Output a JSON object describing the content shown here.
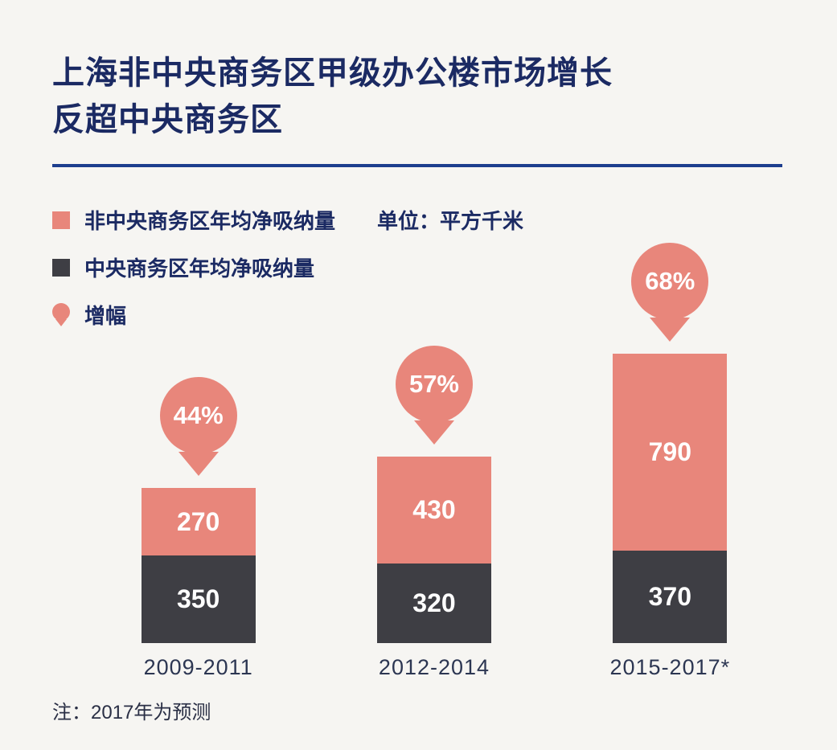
{
  "title": {
    "line1": "上海非中央商务区甲级办公楼市场增长",
    "line2": "反超中央商务区"
  },
  "legend": {
    "items": [
      {
        "label": "非中央商务区年均净吸纳量",
        "swatch": "square",
        "color": "#e8867b"
      },
      {
        "label": "中央商务区年均净吸纳量",
        "swatch": "square",
        "color": "#3e3e44"
      },
      {
        "label": "增幅",
        "swatch": "pin",
        "color": "#e8867b"
      }
    ],
    "unit": "单位：平方千米"
  },
  "chart_data": {
    "type": "bar",
    "stacked": true,
    "title": "上海非中央商务区甲级办公楼市场增长反超中央商务区",
    "unit": "平方千米",
    "categories": [
      "2009-2011",
      "2012-2014",
      "2015-2017*"
    ],
    "series": [
      {
        "name": "中央商务区年均净吸纳量",
        "color": "#3e3e44",
        "values": [
          350,
          320,
          370
        ]
      },
      {
        "name": "非中央商务区年均净吸纳量",
        "color": "#e8867b",
        "values": [
          270,
          430,
          790
        ]
      }
    ],
    "growth_labels": [
      "44%",
      "57%",
      "68%"
    ],
    "growth_color": "#e8867b",
    "legend_position": "top-left",
    "grid": false
  },
  "note": "注：2017年为预测"
}
